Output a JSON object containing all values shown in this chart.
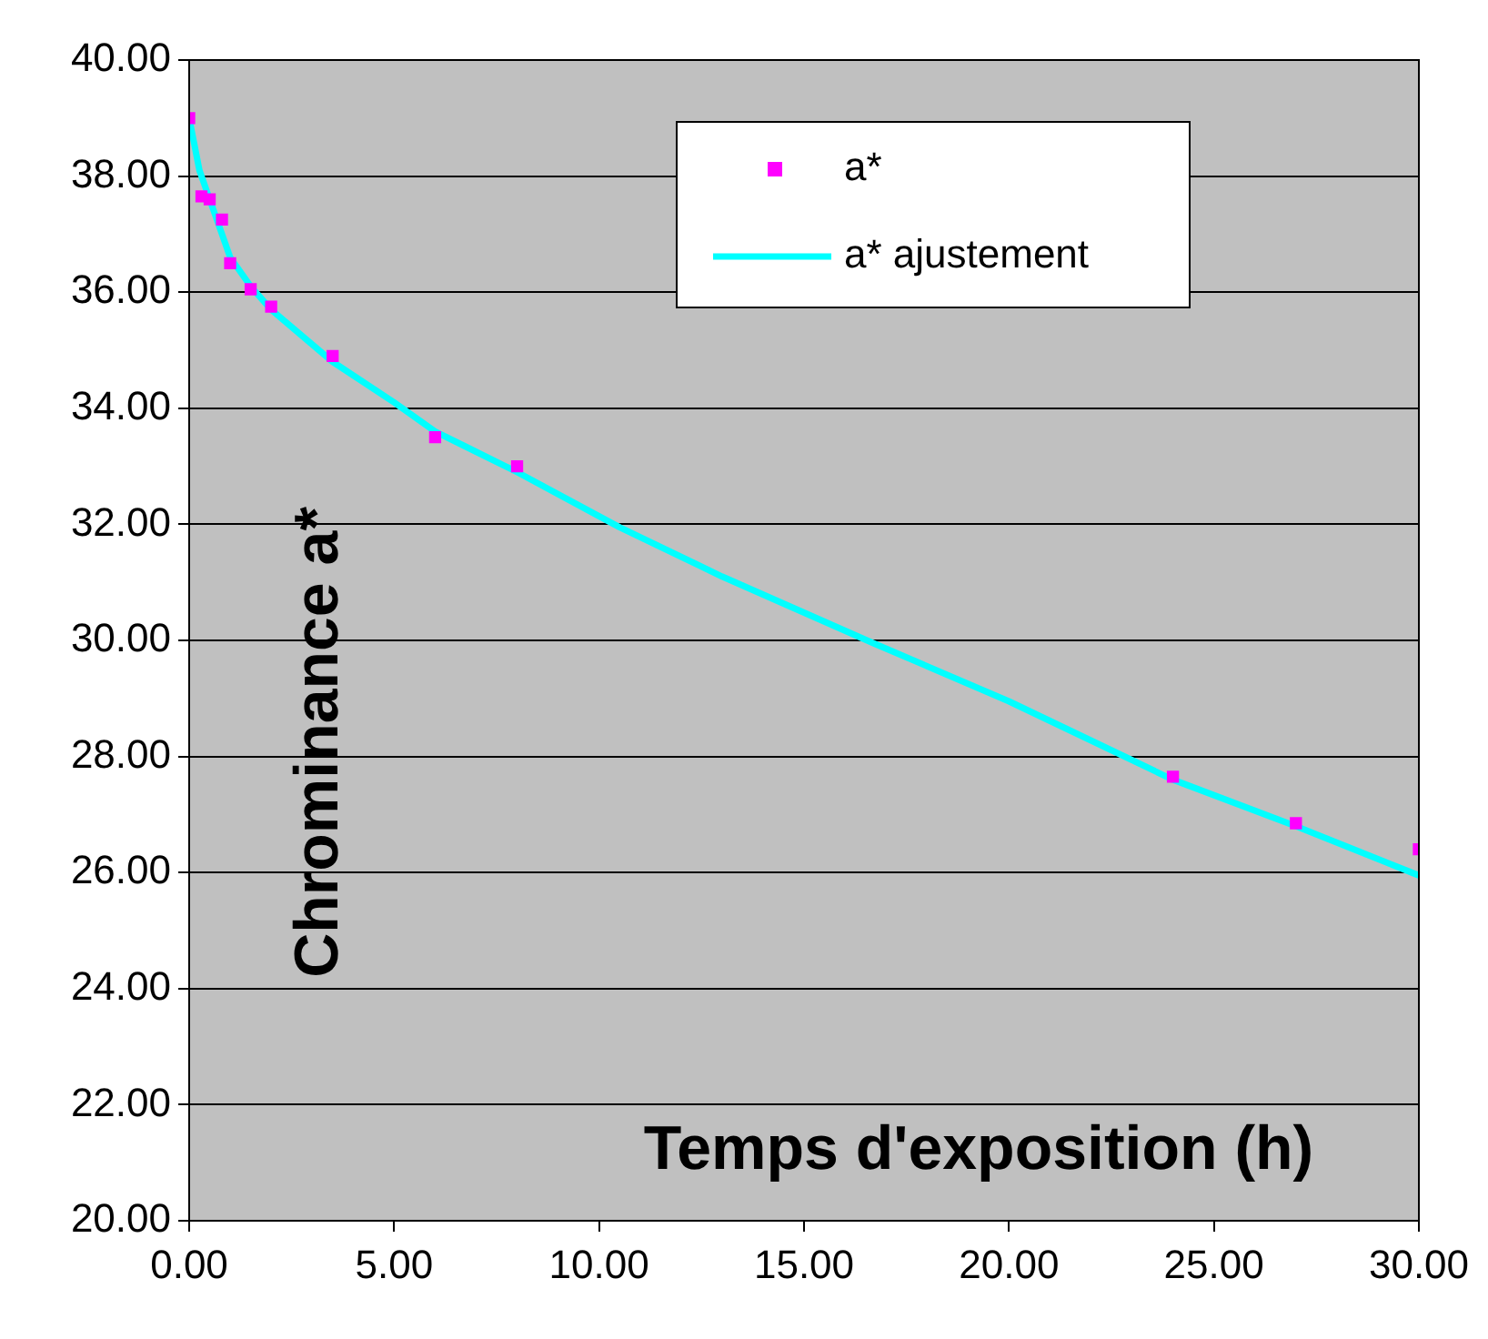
{
  "chart_data": {
    "type": "scatter",
    "xlabel": "Temps d'exposition (h)",
    "ylabel": "Chrominance a*",
    "xlim": [
      0,
      30
    ],
    "ylim": [
      20,
      40
    ],
    "xticks": [
      {
        "value": 0,
        "label": "0.00"
      },
      {
        "value": 5,
        "label": "5.00"
      },
      {
        "value": 10,
        "label": "10.00"
      },
      {
        "value": 15,
        "label": "15.00"
      },
      {
        "value": 20,
        "label": "20.00"
      },
      {
        "value": 25,
        "label": "25.00"
      },
      {
        "value": 30,
        "label": "30.00"
      }
    ],
    "yticks": [
      {
        "value": 20,
        "label": "20.00"
      },
      {
        "value": 22,
        "label": "22.00"
      },
      {
        "value": 24,
        "label": "24.00"
      },
      {
        "value": 26,
        "label": "26.00"
      },
      {
        "value": 28,
        "label": "28.00"
      },
      {
        "value": 30,
        "label": "30.00"
      },
      {
        "value": 32,
        "label": "32.00"
      },
      {
        "value": 34,
        "label": "34.00"
      },
      {
        "value": 36,
        "label": "36.00"
      },
      {
        "value": 38,
        "label": "38.00"
      },
      {
        "value": 40,
        "label": "40.00"
      }
    ],
    "grid": "y",
    "legend": "top right",
    "series": [
      {
        "name": "a*",
        "marker": "square",
        "color": "#ff00ff",
        "x": [
          0,
          0.3,
          0.5,
          0.8,
          1,
          1.5,
          2,
          3.5,
          6,
          8,
          24,
          27,
          30
        ],
        "values": [
          39.0,
          37.65,
          37.6,
          37.25,
          36.5,
          36.05,
          35.75,
          34.9,
          33.5,
          33.0,
          27.65,
          26.85,
          26.4
        ]
      },
      {
        "name": "a* ajustement",
        "type": "line",
        "marker": "none",
        "color": "#00ffff",
        "x": [
          0,
          0.25,
          0.5,
          1,
          1.5,
          2,
          3.5,
          5,
          6,
          8,
          10.5,
          13,
          16.7,
          20,
          24,
          27,
          30
        ],
        "values": [
          39.0,
          38.1,
          37.6,
          36.6,
          36.1,
          35.7,
          34.8,
          34.1,
          33.6,
          32.9,
          31.95,
          31.1,
          29.95,
          28.95,
          27.6,
          26.8,
          25.95
        ]
      }
    ]
  }
}
